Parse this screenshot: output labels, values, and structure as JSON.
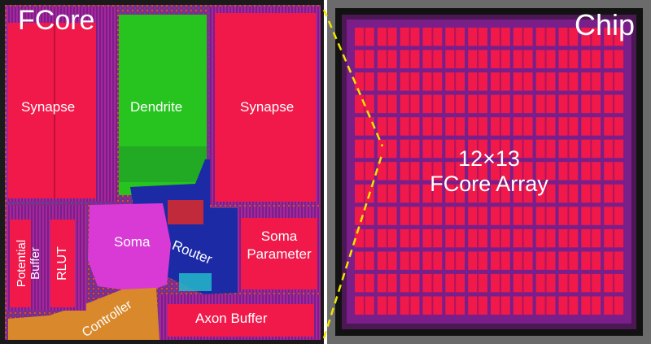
{
  "fcore_panel": {
    "title": "FCore",
    "blocks": {
      "synapse_left": "Synapse",
      "dendrite": "Dendrite",
      "synapse_right": "Synapse",
      "potential_buffer_line1": "Potential",
      "potential_buffer_line2": "Buffer",
      "rlut": "RLUT",
      "soma": "Soma",
      "router": "Router",
      "soma_parameter_line1": "Soma",
      "soma_parameter_line2": "Parameter",
      "controller": "Controller",
      "axon_buffer": "Axon Buffer"
    }
  },
  "chip_panel": {
    "title": "Chip",
    "array_label_line1": "12×13",
    "array_label_line2": "FCore Array",
    "array_rows": 13,
    "array_cols": 12
  },
  "colors": {
    "synapse": "#f0194a",
    "dendrite": "#27c41f",
    "soma": "#d93ad6",
    "router": "#1c2aa6",
    "controller": "#d9892b",
    "die_background": "#7a1e8a",
    "chip_outer": "#6b6b6b",
    "zoom_line": "#f2e400"
  }
}
